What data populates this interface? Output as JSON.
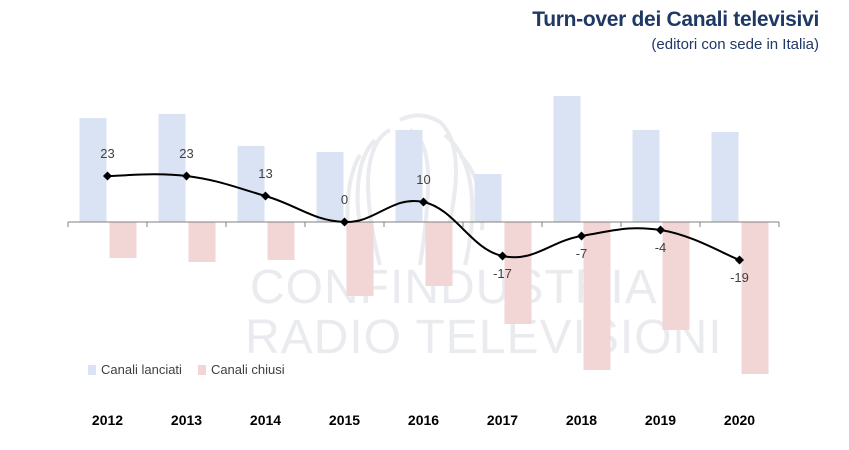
{
  "header": {
    "title": "Turn-over dei Canali televisivi",
    "subtitle": "(editori con sede in Italia)"
  },
  "watermark": {
    "line1": "CONFINDUSTRIA",
    "line2": "RADIO TELEVISIONI"
  },
  "colors": {
    "launched": "#dae3f3",
    "closed": "#f2d5d5",
    "line": "#000000",
    "title": "#1f3864"
  },
  "chart_data": {
    "type": "bar",
    "categories": [
      "2012",
      "2013",
      "2014",
      "2015",
      "2016",
      "2017",
      "2018",
      "2019",
      "2020"
    ],
    "series": [
      {
        "name": "Canali lanciati",
        "type": "bar",
        "values": [
          52,
          54,
          38,
          35,
          46,
          24,
          63,
          46,
          45
        ]
      },
      {
        "name": "Canali chiusi",
        "type": "bar",
        "values": [
          -18,
          -20,
          -19,
          -37,
          -32,
          -51,
          -74,
          -54,
          -76
        ]
      },
      {
        "name": "",
        "type": "line",
        "values": [
          23,
          23,
          13,
          0,
          10,
          -17,
          -7,
          -4,
          -19
        ]
      }
    ],
    "ylim": [
      -80,
      65
    ],
    "grid": false,
    "legend": "bottom-left"
  }
}
